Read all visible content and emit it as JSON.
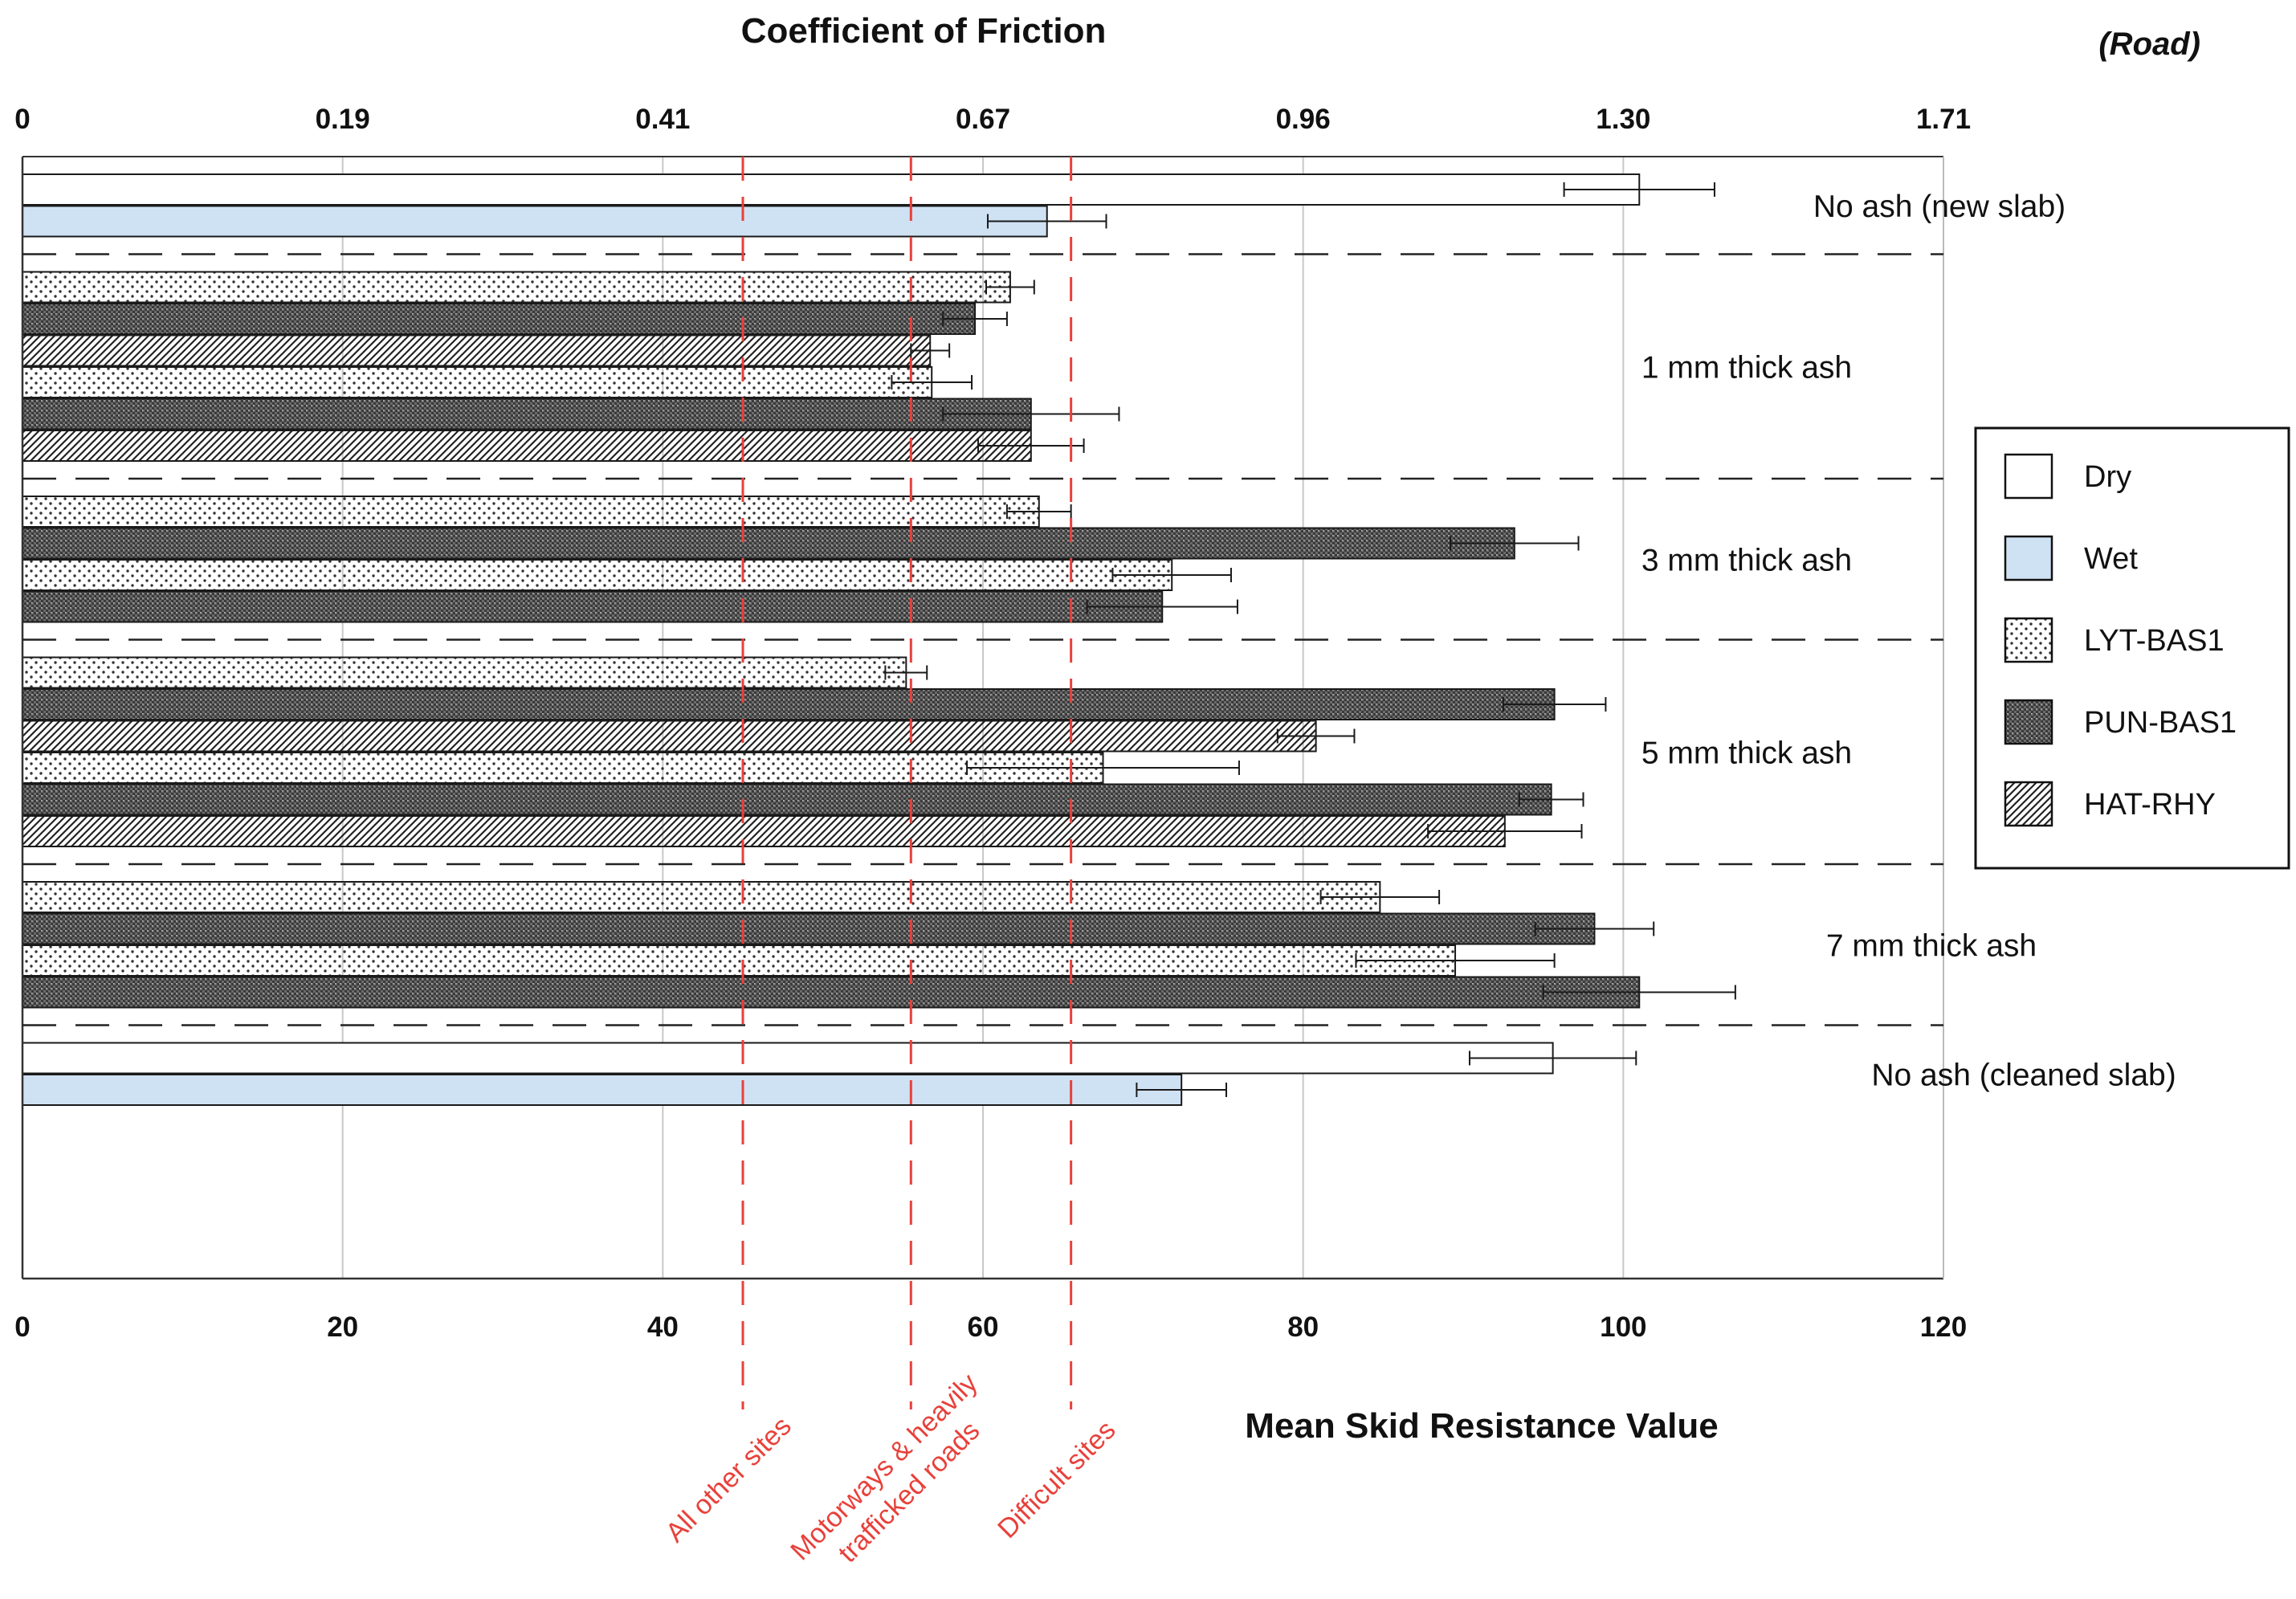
{
  "chart_data": {
    "type": "bar",
    "orientation": "horizontal",
    "top_axis": {
      "title": "Coefficient of Friction",
      "tick_labels": [
        "0",
        "0.19",
        "0.41",
        "0.67",
        "0.96",
        "1.30",
        "1.71"
      ],
      "tick_values": [
        0,
        20,
        40,
        60,
        80,
        100,
        120
      ]
    },
    "corner_label": "(Road)",
    "xlabel": "Mean Skid Resistance Value",
    "xlim": [
      0,
      120
    ],
    "xticks": [
      0,
      20,
      40,
      60,
      80,
      100,
      120
    ],
    "grid": true,
    "legend": {
      "position": "right",
      "entries": [
        {
          "key": "Dry",
          "label": "Dry"
        },
        {
          "key": "Wet",
          "label": "Wet"
        },
        {
          "key": "LYT-BAS1",
          "label": "LYT-BAS1"
        },
        {
          "key": "PUN-BAS1",
          "label": "PUN-BAS1"
        },
        {
          "key": "HAT-RHY",
          "label": "HAT-RHY"
        }
      ]
    },
    "colors": {
      "dry": "#ffffff",
      "wet": "#cfe2f3",
      "threshold": "#e8413b",
      "separator": "#222222",
      "grid": "#c8c8c8"
    },
    "thresholds": [
      {
        "value": 45,
        "label": [
          "All other sites"
        ]
      },
      {
        "value": 55.5,
        "label": [
          "Motorways & heavily",
          "trafficked roads"
        ]
      },
      {
        "value": 65.5,
        "label": [
          "Difficult sites"
        ]
      }
    ],
    "groups": [
      {
        "label": "No ash (new slab)",
        "bars": [
          {
            "condition": "Dry",
            "ash": "none",
            "value": 101,
            "error": 4.7
          },
          {
            "condition": "Wet",
            "ash": "none",
            "value": 64,
            "error": 3.7
          }
        ]
      },
      {
        "label": "1 mm thick ash",
        "bars": [
          {
            "condition": "Dry",
            "ash": "LYT-BAS1",
            "value": 61.7,
            "error": 1.5
          },
          {
            "condition": "Dry",
            "ash": "PUN-BAS1",
            "value": 59.5,
            "error": 2
          },
          {
            "condition": "Dry",
            "ash": "HAT-RHY",
            "value": 56.7,
            "error": 1.2
          },
          {
            "condition": "Wet",
            "ash": "LYT-BAS1",
            "value": 56.8,
            "error": 2.5
          },
          {
            "condition": "Wet",
            "ash": "PUN-BAS1",
            "value": 63,
            "error": 5.5
          },
          {
            "condition": "Wet",
            "ash": "HAT-RHY",
            "value": 63,
            "error": 3.3
          }
        ]
      },
      {
        "label": "3 mm thick ash",
        "bars": [
          {
            "condition": "Dry",
            "ash": "LYT-BAS1",
            "value": 63.5,
            "error": 2
          },
          {
            "condition": "Dry",
            "ash": "PUN-BAS1",
            "value": 93.2,
            "error": 4
          },
          {
            "condition": "Wet",
            "ash": "LYT-BAS1",
            "value": 71.8,
            "error": 3.7
          },
          {
            "condition": "Wet",
            "ash": "PUN-BAS1",
            "value": 71.2,
            "error": 4.7
          }
        ]
      },
      {
        "label": "5 mm thick ash",
        "bars": [
          {
            "condition": "Dry",
            "ash": "LYT-BAS1",
            "value": 55.2,
            "error": 1.3
          },
          {
            "condition": "Dry",
            "ash": "PUN-BAS1",
            "value": 95.7,
            "error": 3.2
          },
          {
            "condition": "Dry",
            "ash": "HAT-RHY",
            "value": 80.8,
            "error": 2.4
          },
          {
            "condition": "Wet",
            "ash": "LYT-BAS1",
            "value": 67.5,
            "error": 8.5
          },
          {
            "condition": "Wet",
            "ash": "PUN-BAS1",
            "value": 95.5,
            "error": 2
          },
          {
            "condition": "Wet",
            "ash": "HAT-RHY",
            "value": 92.6,
            "error": 4.8
          }
        ]
      },
      {
        "label": "7 mm thick ash",
        "bars": [
          {
            "condition": "Dry",
            "ash": "LYT-BAS1",
            "value": 84.8,
            "error": 3.7
          },
          {
            "condition": "Dry",
            "ash": "PUN-BAS1",
            "value": 98.2,
            "error": 3.7
          },
          {
            "condition": "Wet",
            "ash": "LYT-BAS1",
            "value": 89.5,
            "error": 6.2
          },
          {
            "condition": "Wet",
            "ash": "PUN-BAS1",
            "value": 101,
            "error": 6
          }
        ]
      },
      {
        "label": "No ash (cleaned slab)",
        "bars": [
          {
            "condition": "Dry",
            "ash": "none",
            "value": 95.6,
            "error": 5.2
          },
          {
            "condition": "Wet",
            "ash": "none",
            "value": 72.4,
            "error": 2.8
          }
        ]
      }
    ]
  }
}
